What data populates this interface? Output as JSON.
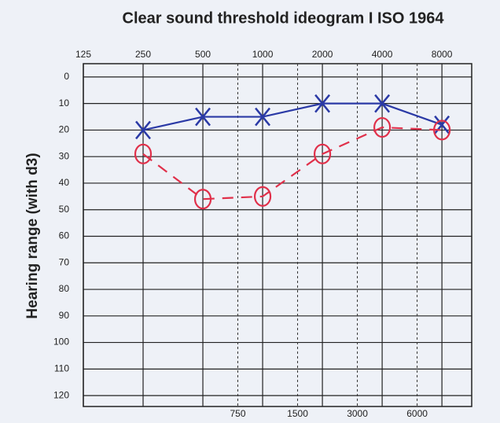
{
  "chart_data": {
    "type": "line",
    "title": "Clear sound threshold ideogram I ISO 1964",
    "y_label": "Hearing range (with d3)",
    "x": [
      250,
      500,
      1000,
      2000,
      4000,
      8000
    ],
    "series": [
      {
        "color": "#2b3aa6",
        "marker": "x",
        "values": [
          20,
          15,
          15,
          10,
          10,
          18
        ]
      },
      {
        "color": "#e0304a",
        "marker": "o",
        "values": [
          29,
          46,
          45,
          29,
          19,
          20
        ]
      }
    ],
    "log_x": true,
    "xlim": [
      125,
      11300
    ],
    "xticks": [
      125,
      250,
      500,
      1000,
      2000,
      4000,
      8000
    ],
    "xticks_dashed": [
      750,
      1500,
      3000,
      6000
    ],
    "ylim": [
      -5,
      125
    ],
    "yticks": [
      0,
      10,
      20,
      30,
      40,
      50,
      60,
      70,
      80,
      90,
      100,
      110,
      120
    ],
    "y_inverted": true,
    "grid": true
  }
}
